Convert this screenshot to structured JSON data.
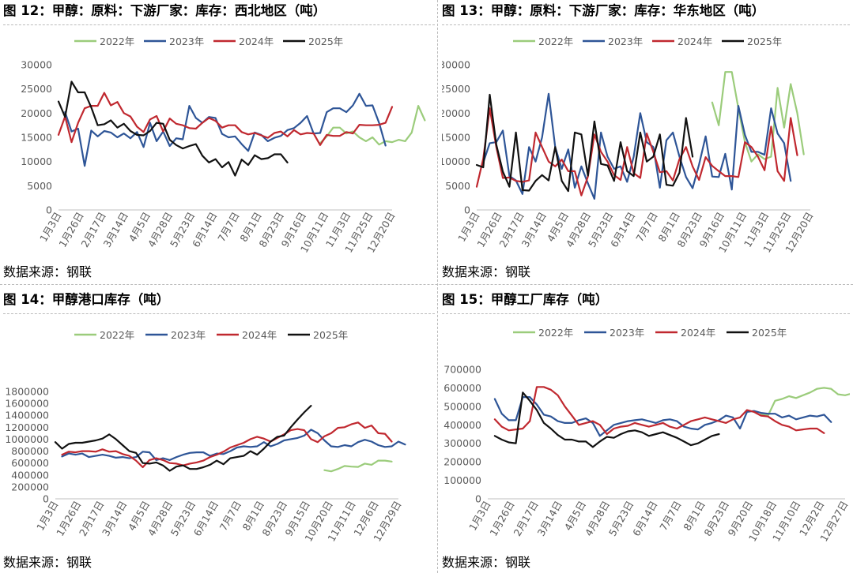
{
  "legend_labels": [
    "2022年",
    "2023年",
    "2024年",
    "2025年"
  ],
  "colors": {
    "2022": "#9bcc7b",
    "2023": "#2e5597",
    "2024": "#c0282f",
    "2025": "#111111"
  },
  "source_prefix": "数据来源：",
  "source_value": "钢联",
  "chart_data": [
    {
      "id": "fig12",
      "type": "line",
      "title": "图 12：甲醇：原料：下游厂家：库存：西北地区（吨）",
      "source": "数据来源：钢联",
      "ylim": [
        0,
        30000
      ],
      "yticks": [
        0,
        5000,
        10000,
        15000,
        20000,
        25000,
        30000
      ],
      "x_count": 52,
      "x_labels": [
        "1月3日",
        "1月26日",
        "2月17日",
        "3月14日",
        "4月5日",
        "4月28日",
        "5月23日",
        "6月14日",
        "7月7日",
        "8月1日",
        "8月23日",
        "9月16日",
        "10月11日",
        "11月3日",
        "11月25日",
        "12月20日"
      ],
      "legend_position": "top",
      "series": [
        {
          "name": "2022年",
          "color_key": "2022",
          "start": 40,
          "values": [
            13800,
            15200,
            17000,
            17000,
            15800,
            16200,
            15000,
            14200,
            15000,
            13500,
            14200,
            14000,
            14500,
            14200,
            16000,
            21500,
            18500
          ]
        },
        {
          "name": "2023年",
          "color_key": "2023",
          "start": 1,
          "values": [
            20200,
            16200,
            16800,
            9100,
            16400,
            15200,
            16300,
            16000,
            15000,
            15800,
            14800,
            16100,
            13000,
            18000,
            14200,
            16200,
            13200,
            14800,
            14600,
            21500,
            19000,
            18000,
            19200,
            19000,
            15700,
            15000,
            15200,
            13600,
            12200,
            16000,
            15500,
            14200,
            14900,
            15300,
            16500,
            16900,
            18000,
            19400,
            15800,
            15900,
            20200,
            21000,
            21000,
            20200,
            21600,
            24000,
            21500,
            21600,
            18000,
            13300
          ]
        },
        {
          "name": "2024年",
          "color_key": "2024",
          "start": 0,
          "values": [
            15500,
            19300,
            14000,
            18000,
            21000,
            21500,
            21500,
            24200,
            21600,
            22300,
            20000,
            19300,
            17200,
            16100,
            18700,
            19400,
            16200,
            18900,
            17800,
            17500,
            16900,
            16800,
            18000,
            19000,
            18400,
            17000,
            17500,
            17500,
            16100,
            15600,
            15900,
            15400,
            14900,
            15900,
            16200,
            15200,
            16500,
            15600,
            15900,
            15800,
            13400,
            15500,
            15300,
            15300,
            16100,
            15800,
            17600,
            17500,
            17500,
            17600,
            18000,
            21300
          ]
        },
        {
          "name": "2025年",
          "color_key": "2025",
          "start": 0,
          "values": [
            22400,
            19200,
            26500,
            24300,
            24300,
            21200,
            17500,
            17700,
            18500,
            17000,
            17800,
            16300,
            15500,
            15400,
            16300,
            18000,
            17800,
            14500,
            13400,
            12700,
            13200,
            13600,
            11200,
            9800,
            10500,
            8800,
            9900,
            7100,
            10400,
            9300,
            11300,
            10500,
            10700,
            11500,
            11500,
            9800
          ]
        }
      ]
    },
    {
      "id": "fig13",
      "type": "line",
      "title": "图 13：甲醇：原料：下游厂家：库存：华东地区（吨）",
      "source": "数据来源：钢联",
      "ylim": [
        0,
        30000
      ],
      "yticks": [
        0,
        5000,
        10000,
        15000,
        20000,
        25000,
        30000
      ],
      "x_count": 52,
      "x_labels": [
        "1月3日",
        "1月26日",
        "2月17日",
        "3月14日",
        "4月5日",
        "4月28日",
        "5月23日",
        "6月14日",
        "7月7日",
        "8月1日",
        "8月23日",
        "9月16日",
        "10月11日",
        "11月3日",
        "11月25日",
        "12月20日"
      ],
      "legend_position": "top",
      "series": [
        {
          "name": "2022年",
          "color_key": "2022",
          "start": 36,
          "values": [
            22200,
            17500,
            28500,
            28500,
            21000,
            14000,
            10000,
            11500,
            10500,
            11000,
            25200,
            17000,
            26000,
            20000,
            11500
          ]
        },
        {
          "name": "2023年",
          "color_key": "2023",
          "start": 1,
          "values": [
            9800,
            13800,
            14000,
            16400,
            7000,
            6100,
            3300,
            13000,
            10000,
            15000,
            24000,
            13000,
            8500,
            12500,
            4600,
            9000,
            5500,
            2300,
            16000,
            11000,
            8500,
            9000,
            5800,
            11000,
            20000,
            14000,
            13000,
            4600,
            14400,
            16000,
            11000,
            6800,
            4500,
            9400,
            15200,
            6900,
            6800,
            11600,
            4200,
            21500,
            15500,
            12000,
            12000,
            11400,
            21000,
            15800,
            13800,
            6000
          ]
        },
        {
          "name": "2024年",
          "color_key": "2024",
          "start": 0,
          "values": [
            4800,
            10600,
            21000,
            13000,
            6600,
            6700,
            6000,
            5800,
            6100,
            16000,
            13000,
            10000,
            9000,
            10400,
            8000,
            8000,
            3000,
            6900,
            15600,
            12000,
            10000,
            7200,
            6200,
            13000,
            7600,
            6600,
            15800,
            12000,
            7800,
            8000,
            6100,
            10500,
            13000,
            9000,
            6200,
            10900,
            9100,
            8000,
            7000,
            7000,
            6800,
            14000,
            13000,
            11000,
            8200,
            17200,
            8000,
            6000,
            19000,
            11300
          ]
        },
        {
          "name": "2025年",
          "color_key": "2025",
          "start": 0,
          "values": [
            9300,
            8800,
            23800,
            13500,
            7900,
            4800,
            16000,
            4100,
            4000,
            6000,
            7200,
            6100,
            13000,
            6000,
            3900,
            16000,
            15600,
            7100,
            18300,
            9500,
            9200,
            6000,
            14000,
            8000,
            7000,
            16000,
            10000,
            11000,
            15600,
            5200,
            5000,
            7700,
            19000,
            11000
          ]
        }
      ]
    },
    {
      "id": "fig14",
      "type": "line",
      "title": "图 14：甲醇港口库存（吨）",
      "source": "数据来源：钢联",
      "ylim": [
        0,
        1800000
      ],
      "yticks": [
        0,
        200000,
        400000,
        600000,
        800000,
        1000000,
        1200000,
        1400000,
        1600000,
        1800000
      ],
      "x_count": 52,
      "x_labels": [
        "1月3日",
        "1月26日",
        "2月17日",
        "3月14日",
        "4月5日",
        "4月28日",
        "5月23日",
        "6月14日",
        "7月7日",
        "8月1日",
        "8月23日",
        "9月15日",
        "10月20日",
        "11月11日",
        "12月6日",
        "12月29日"
      ],
      "legend_position": "top",
      "series": [
        {
          "name": "2022年",
          "color_key": "2022",
          "start": 40,
          "values": [
            480000,
            460000,
            500000,
            550000,
            540000,
            535000,
            590000,
            570000,
            640000,
            640000,
            625000
          ]
        },
        {
          "name": "2023年",
          "color_key": "2023",
          "start": 1,
          "values": [
            710000,
            760000,
            740000,
            760000,
            700000,
            720000,
            740000,
            720000,
            690000,
            700000,
            680000,
            700000,
            790000,
            780000,
            650000,
            680000,
            650000,
            700000,
            740000,
            770000,
            780000,
            780000,
            720000,
            760000,
            750000,
            800000,
            860000,
            880000,
            870000,
            880000,
            950000,
            880000,
            920000,
            980000,
            1000000,
            1020000,
            1060000,
            1160000,
            1100000,
            980000,
            880000,
            870000,
            900000,
            880000,
            950000,
            990000,
            960000,
            900000,
            870000,
            880000,
            960000,
            910000
          ]
        },
        {
          "name": "2024年",
          "color_key": "2024",
          "start": 1,
          "values": [
            740000,
            790000,
            780000,
            800000,
            800000,
            790000,
            830000,
            790000,
            800000,
            750000,
            720000,
            640000,
            530000,
            650000,
            680000,
            650000,
            600000,
            590000,
            560000,
            590000,
            610000,
            640000,
            700000,
            740000,
            790000,
            860000,
            900000,
            940000,
            1000000,
            1040000,
            1010000,
            960000,
            1020000,
            1080000,
            1150000,
            1170000,
            1150000,
            1000000,
            950000,
            1050000,
            1100000,
            1190000,
            1200000,
            1250000,
            1280000,
            1190000,
            1230000,
            1100000,
            1090000,
            960000
          ]
        },
        {
          "name": "2025年",
          "color_key": "2025",
          "start": 0,
          "values": [
            950000,
            840000,
            920000,
            940000,
            940000,
            960000,
            980000,
            1010000,
            1080000,
            1000000,
            900000,
            800000,
            770000,
            600000,
            590000,
            610000,
            560000,
            470000,
            540000,
            560000,
            500000,
            500000,
            530000,
            570000,
            640000,
            580000,
            680000,
            700000,
            720000,
            800000,
            740000,
            840000,
            960000,
            1040000,
            1060000,
            1200000,
            1330000,
            1450000,
            1560000
          ]
        }
      ]
    },
    {
      "id": "fig15",
      "type": "line",
      "title": "图 15：甲醇工厂库存（吨）",
      "source": "数据来源：钢联",
      "ylim": [
        0,
        700000
      ],
      "yticks": [
        0,
        100000,
        200000,
        300000,
        400000,
        500000,
        600000,
        700000
      ],
      "x_count": 52,
      "x_labels": [
        "1月3日",
        "1月26日",
        "2月17日",
        "3月14日",
        "4月5日",
        "4月28日",
        "5月23日",
        "6月14日",
        "7月7日",
        "8月1日",
        "8月23日",
        "9月20日",
        "10月18日",
        "11月10日",
        "12月2日",
        "12月27日"
      ],
      "legend_position": "top",
      "series": [
        {
          "name": "2022年",
          "color_key": "2022",
          "start": 39,
          "values": [
            460000,
            450000,
            530000,
            540000,
            555000,
            545000,
            560000,
            575000,
            595000,
            600000,
            595000,
            565000,
            560000,
            570000
          ]
        },
        {
          "name": "2023年",
          "color_key": "2023",
          "start": 1,
          "values": [
            540000,
            460000,
            425000,
            425000,
            550000,
            550000,
            510000,
            455000,
            445000,
            420000,
            410000,
            410000,
            425000,
            435000,
            410000,
            340000,
            370000,
            400000,
            410000,
            420000,
            425000,
            430000,
            420000,
            410000,
            425000,
            430000,
            420000,
            390000,
            380000,
            375000,
            400000,
            410000,
            425000,
            450000,
            440000,
            380000,
            470000,
            475000,
            465000,
            460000,
            460000,
            440000,
            450000,
            430000,
            440000,
            450000,
            445000,
            455000,
            415000
          ]
        },
        {
          "name": "2024年",
          "color_key": "2024",
          "start": 1,
          "values": [
            430000,
            390000,
            370000,
            375000,
            380000,
            420000,
            605000,
            605000,
            590000,
            560000,
            500000,
            450000,
            400000,
            410000,
            420000,
            400000,
            350000,
            380000,
            390000,
            395000,
            410000,
            400000,
            390000,
            400000,
            410000,
            390000,
            380000,
            400000,
            420000,
            430000,
            440000,
            430000,
            420000,
            410000,
            430000,
            440000,
            480000,
            470000,
            450000,
            445000,
            420000,
            400000,
            390000,
            370000,
            375000,
            380000,
            380000,
            355000
          ]
        },
        {
          "name": "2025年",
          "color_key": "2025",
          "start": 1,
          "values": [
            340000,
            320000,
            305000,
            300000,
            575000,
            530000,
            480000,
            410000,
            380000,
            345000,
            320000,
            320000,
            310000,
            310000,
            280000,
            310000,
            335000,
            330000,
            350000,
            365000,
            370000,
            360000,
            340000,
            350000,
            360000,
            345000,
            330000,
            310000,
            290000,
            300000,
            320000,
            340000,
            350000
          ]
        }
      ]
    }
  ]
}
